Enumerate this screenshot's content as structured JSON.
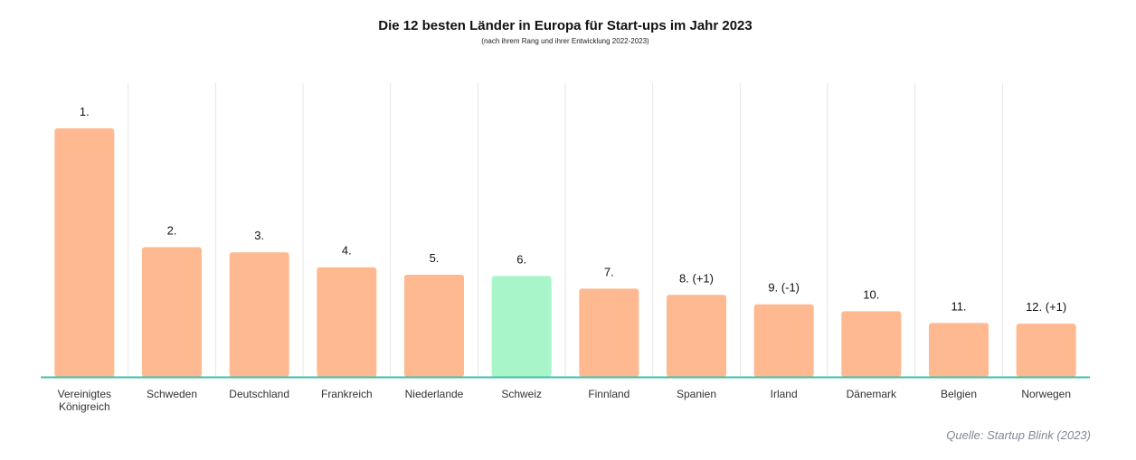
{
  "title": "Die 12 besten Länder in Europa für Start-ups im Jahr 2023",
  "subtitle": "(nach ihrem Rang und ihrer Entwicklung 2022-2023)",
  "source": "Quelle: Startup Blink (2023)",
  "colors": {
    "bar": "#ffb991",
    "highlight": "#a8f5c9",
    "baseline": "#3fbfa8",
    "grid": "#e6e6e6",
    "text": "#111111",
    "axis_label": "#333333",
    "source": "#7e8a98"
  },
  "chart_data": {
    "type": "bar",
    "title": "Die 12 besten Länder in Europa für Start-ups im Jahr 2023",
    "subtitle": "(nach ihrem Rang und ihrer Entwicklung 2022-2023)",
    "categories": [
      "Vereinigtes Königreich",
      "Schweden",
      "Deutschland",
      "Frankreich",
      "Niederlande",
      "Schweiz",
      "Finnland",
      "Spanien",
      "Irland",
      "Dänemark",
      "Belgien",
      "Norwegen"
    ],
    "category_lines": [
      [
        "Vereinigtes",
        "Königreich"
      ],
      [
        "Schweden"
      ],
      [
        "Deutschland"
      ],
      [
        "Frankreich"
      ],
      [
        "Niederlande"
      ],
      [
        "Schweiz"
      ],
      [
        "Finnland"
      ],
      [
        "Spanien"
      ],
      [
        "Irland"
      ],
      [
        "Dänemark"
      ],
      [
        "Belgien"
      ],
      [
        "Norwegen"
      ]
    ],
    "values": [
      100,
      52.2,
      50.1,
      44.1,
      41.1,
      40.6,
      35.5,
      33.0,
      29.2,
      26.4,
      21.7,
      21.4
    ],
    "data_labels": [
      "1.",
      "2.",
      "3.",
      "4.",
      "5.",
      "6.",
      "7.",
      "8. (+1)",
      "9. (-1)",
      "10.",
      "11.",
      "12. (+1)"
    ],
    "highlight_index": 5,
    "ylim": [
      0,
      100
    ],
    "grid": true,
    "legend": "none",
    "xlabel": "",
    "ylabel": ""
  }
}
